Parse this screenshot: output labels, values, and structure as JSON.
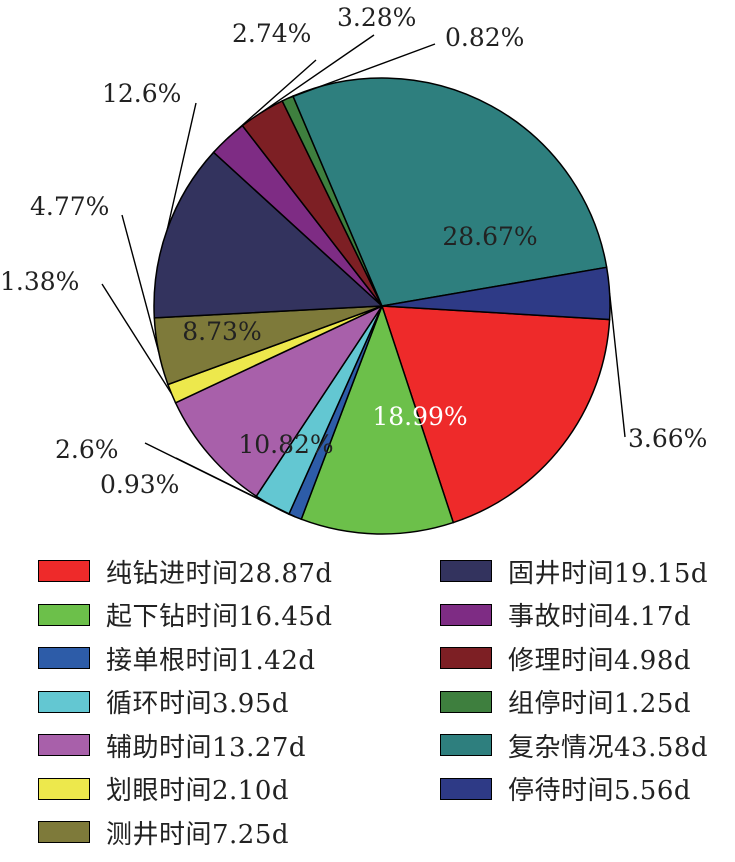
{
  "chart_data": {
    "type": "pie",
    "slices": [
      {
        "label": "纯钻进时间28.87d",
        "value": 28.87,
        "percent_label": "18.99%",
        "color": "#EE2A2A",
        "pct_color": "#ffffff"
      },
      {
        "label": "起下钻时间16.45d",
        "value": 16.45,
        "percent_label": "10.82%",
        "color": "#6CC04A",
        "pct_color": "#222222"
      },
      {
        "label": "接单根时间1.42d",
        "value": 1.42,
        "percent_label": "0.93%",
        "color": "#2D5CA8",
        "pct_color": "#222222"
      },
      {
        "label": "循环时间3.95d",
        "value": 3.95,
        "percent_label": "2.6%",
        "color": "#63C7D2",
        "pct_color": "#222222"
      },
      {
        "label": "辅助时间13.27d",
        "value": 13.27,
        "percent_label": "8.73%",
        "color": "#A860AA",
        "pct_color": "#222222"
      },
      {
        "label": "划眼时间2.10d",
        "value": 2.1,
        "percent_label": "1.38%",
        "color": "#EDE84C",
        "pct_color": "#222222"
      },
      {
        "label": "测井时间7.25d",
        "value": 7.25,
        "percent_label": "4.77%",
        "color": "#7E7A3A",
        "pct_color": "#222222"
      },
      {
        "label": "固井时间19.15d",
        "value": 19.15,
        "percent_label": "12.6%",
        "color": "#33335E",
        "pct_color": "#222222"
      },
      {
        "label": "事故时间4.17d",
        "value": 4.17,
        "percent_label": "2.74%",
        "color": "#7E2C84",
        "pct_color": "#222222"
      },
      {
        "label": "修理时间4.98d",
        "value": 4.98,
        "percent_label": "3.28%",
        "color": "#7D1F24",
        "pct_color": "#222222"
      },
      {
        "label": "组停时间1.25d",
        "value": 1.25,
        "percent_label": "0.82%",
        "color": "#3E7F3E",
        "pct_color": "#222222"
      },
      {
        "label": "复杂情况43.58d",
        "value": 43.58,
        "percent_label": "28.67%",
        "color": "#2E7F7E",
        "pct_color": "#222222"
      },
      {
        "label": "停待时间5.56d",
        "value": 5.56,
        "percent_label": "3.66%",
        "color": "#2E3A86",
        "pct_color": "#222222"
      }
    ],
    "legend_placement": "bottom, two columns"
  }
}
